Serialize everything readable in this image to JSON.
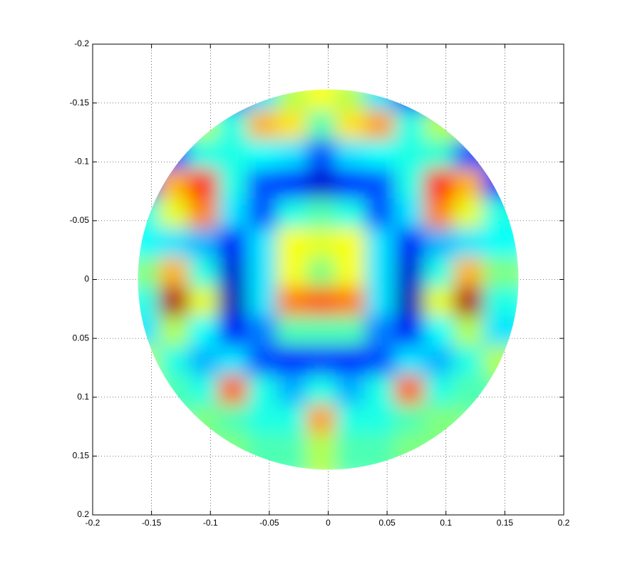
{
  "chart_data": {
    "type": "heatmap",
    "colormap": "jet",
    "x": [
      -0.15,
      -0.125,
      -0.1,
      -0.075,
      -0.05,
      -0.025,
      0,
      0.025,
      0.05,
      0.075,
      0.1,
      0.125,
      0.15
    ],
    "y": [
      -0.15,
      -0.125,
      -0.1,
      -0.075,
      -0.05,
      -0.025,
      0,
      0.025,
      0.05,
      0.075,
      0.1,
      0.125,
      0.15
    ],
    "z": [
      [
        null,
        null,
        null,
        0.15,
        0.35,
        0.55,
        0.62,
        0.55,
        0.35,
        0.12,
        null,
        null,
        null
      ],
      [
        null,
        null,
        0.55,
        0.4,
        0.7,
        0.65,
        0.45,
        0.65,
        0.72,
        0.4,
        0.55,
        null,
        null
      ],
      [
        null,
        0.15,
        0.4,
        0.4,
        0.38,
        0.35,
        0.2,
        0.35,
        0.38,
        0.4,
        0.42,
        0.2,
        null
      ],
      [
        0.15,
        0.7,
        0.85,
        0.4,
        0.2,
        0.15,
        0.08,
        0.15,
        0.2,
        0.4,
        0.85,
        0.7,
        0.15
      ],
      [
        0.4,
        0.6,
        0.75,
        0.35,
        0.2,
        0.4,
        0.45,
        0.4,
        0.2,
        0.35,
        0.75,
        0.6,
        0.4
      ],
      [
        0.38,
        0.35,
        0.3,
        0.12,
        0.35,
        0.62,
        0.6,
        0.62,
        0.35,
        0.12,
        0.3,
        0.35,
        0.38
      ],
      [
        0.5,
        0.7,
        0.4,
        0.08,
        0.35,
        0.62,
        0.5,
        0.62,
        0.35,
        0.08,
        0.4,
        0.7,
        0.5
      ],
      [
        0.4,
        0.95,
        0.6,
        0.05,
        0.35,
        0.75,
        0.78,
        0.75,
        0.35,
        0.05,
        0.6,
        0.95,
        0.4
      ],
      [
        0.35,
        0.55,
        0.38,
        0.12,
        0.25,
        0.45,
        0.45,
        0.45,
        0.25,
        0.12,
        0.38,
        0.55,
        0.35
      ],
      [
        0.55,
        0.4,
        0.3,
        0.35,
        0.2,
        0.15,
        0.18,
        0.15,
        0.2,
        0.35,
        0.3,
        0.4,
        0.55
      ],
      [
        null,
        0.45,
        0.4,
        0.78,
        0.4,
        0.3,
        0.4,
        0.3,
        0.4,
        0.78,
        0.4,
        0.45,
        null
      ],
      [
        null,
        null,
        0.5,
        0.45,
        0.4,
        0.4,
        0.72,
        0.4,
        0.4,
        0.45,
        0.5,
        null,
        null
      ],
      [
        null,
        null,
        null,
        0.5,
        0.45,
        0.45,
        0.55,
        0.45,
        0.45,
        0.5,
        null,
        null,
        null
      ]
    ],
    "xlim": [
      -0.2,
      0.2
    ],
    "ylim": [
      -0.2,
      0.2
    ],
    "y_reversed": true,
    "xticks": [
      -0.2,
      -0.15,
      -0.1,
      -0.05,
      0,
      0.05,
      0.1,
      0.15,
      0.2
    ],
    "yticks": [
      -0.2,
      -0.15,
      -0.1,
      -0.05,
      0,
      0.05,
      0.1,
      0.15,
      0.2
    ],
    "grid": true
  }
}
